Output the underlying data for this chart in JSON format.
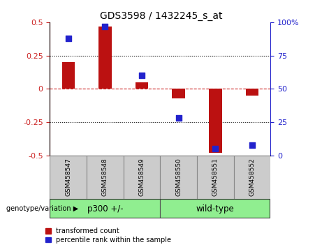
{
  "title": "GDS3598 / 1432245_s_at",
  "samples": [
    "GSM458547",
    "GSM458548",
    "GSM458549",
    "GSM458550",
    "GSM458551",
    "GSM458552"
  ],
  "red_values": [
    0.2,
    0.47,
    0.05,
    -0.07,
    -0.48,
    -0.05
  ],
  "blue_values": [
    88,
    97,
    60,
    28,
    5,
    8
  ],
  "ylim_left": [
    -0.5,
    0.5
  ],
  "ylim_right": [
    0,
    100
  ],
  "group_label": "genotype/variation",
  "bar_color": "#BB1111",
  "dot_color": "#2222CC",
  "legend_red": "transformed count",
  "legend_blue": "percentile rank within the sample",
  "bg_color": "#FFFFFF",
  "plot_bg": "#FFFFFF",
  "tick_color_left": "#CC2222",
  "tick_color_right": "#2222CC",
  "dotted_line_color": "#000000",
  "zero_line_color": "#CC2222",
  "bar_width": 0.35,
  "dot_size": 30,
  "group_box_color": "#CCCCCC",
  "group_fill_color": "#90EE90",
  "p300_label": "p300 +/-",
  "wildtype_label": "wild-type"
}
